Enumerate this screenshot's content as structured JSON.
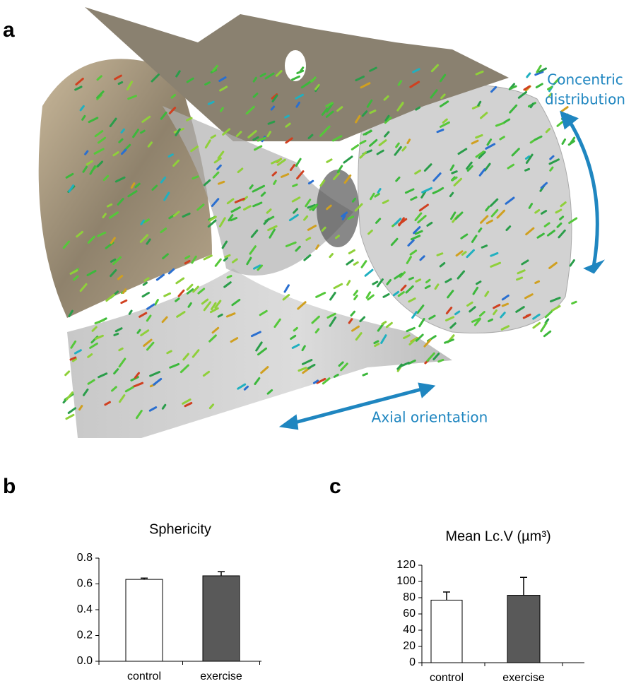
{
  "panel_a": {
    "label": "a",
    "annotations": {
      "concentric": [
        "Concentric",
        "distribution"
      ],
      "axial": "Axial orientation"
    }
  },
  "chart_data": [
    {
      "type": "bar",
      "panel": "b",
      "title": "Sphericity",
      "categories": [
        "control",
        "exercise"
      ],
      "values": [
        0.635,
        0.663
      ],
      "errors": [
        0.01,
        0.032
      ],
      "colors": [
        "#ffffff",
        "#595959"
      ],
      "ylim": [
        0,
        0.8
      ],
      "yticks": [
        {
          "value": 0,
          "label": "0.0"
        },
        0.2,
        0.4,
        0.6,
        0.8
      ]
    },
    {
      "type": "bar",
      "panel": "c",
      "title": "Mean Lc.V (µm³)",
      "categories": [
        "control",
        "exercise"
      ],
      "values": [
        77,
        83
      ],
      "errors": [
        10,
        22
      ],
      "colors": [
        "#ffffff",
        "#595959"
      ],
      "ylim": [
        0,
        120
      ],
      "yticks": [
        0,
        20,
        40,
        60,
        80,
        100,
        120
      ]
    }
  ]
}
